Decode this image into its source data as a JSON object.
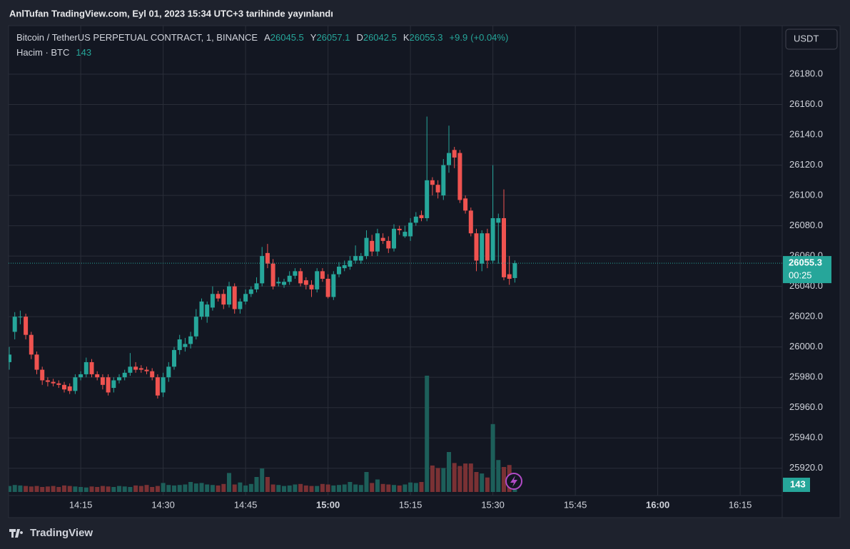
{
  "header": {
    "title": "AnlTufan TradingView.com, Eyl 01, 2023 15:34 UTC+3 tarihinde yayınlandı",
    "currency": "USDT"
  },
  "legend": {
    "symbol": "Bitcoin / TetherUS PERPETUAL CONTRACT, 1, BINANCE",
    "ohlc_labels": [
      "A",
      "Y",
      "D",
      "K"
    ],
    "change": {
      "value": 9.9,
      "label": "+9.9"
    },
    "change_pct": {
      "value": 0.04,
      "label": "(+0.04%)"
    },
    "volume_label": "Hacim · BTC",
    "countdown": "00:25"
  },
  "chart_data": {
    "type": "candlestick",
    "x": [
      "14:02",
      "14:03",
      "14:04",
      "14:05",
      "14:06",
      "14:07",
      "14:08",
      "14:09",
      "14:10",
      "14:11",
      "14:12",
      "14:13",
      "14:14",
      "14:15",
      "14:16",
      "14:17",
      "14:18",
      "14:19",
      "14:20",
      "14:21",
      "14:22",
      "14:23",
      "14:24",
      "14:25",
      "14:26",
      "14:27",
      "14:28",
      "14:29",
      "14:30",
      "14:31",
      "14:32",
      "14:33",
      "14:34",
      "14:35",
      "14:36",
      "14:37",
      "14:38",
      "14:39",
      "14:40",
      "14:41",
      "14:42",
      "14:43",
      "14:44",
      "14:45",
      "14:46",
      "14:47",
      "14:48",
      "14:49",
      "14:50",
      "14:51",
      "14:52",
      "14:53",
      "14:54",
      "14:55",
      "14:56",
      "14:57",
      "14:58",
      "14:59",
      "15:00",
      "15:01",
      "15:02",
      "15:03",
      "15:04",
      "15:05",
      "15:06",
      "15:07",
      "15:08",
      "15:09",
      "15:10",
      "15:11",
      "15:12",
      "15:13",
      "15:14",
      "15:15",
      "15:16",
      "15:17",
      "15:18",
      "15:19",
      "15:20",
      "15:21",
      "15:22",
      "15:23",
      "15:24",
      "15:25",
      "15:26",
      "15:27",
      "15:28",
      "15:29",
      "15:30",
      "15:31",
      "15:32",
      "15:33",
      "15:34"
    ],
    "open": [
      25990,
      26010,
      26020,
      26020,
      26008,
      25995,
      25985,
      25978,
      25977,
      25976,
      25975,
      25974,
      25971,
      25980,
      25982,
      25990,
      25982,
      25980,
      25980,
      25973,
      25978,
      25980,
      25983,
      25987,
      25986,
      25985,
      25984,
      25980,
      25970,
      25980,
      25987,
      25998,
      26000,
      26002,
      26007,
      26020,
      26020,
      26026,
      26035,
      26035,
      26028,
      26040,
      26025,
      26030,
      26035,
      26038,
      26042,
      26062,
      26055,
      26042,
      26041,
      26043,
      26047,
      26050,
      26044,
      26041,
      26038,
      26050,
      26045,
      26033,
      26048,
      26052,
      26053,
      26057,
      26057,
      26060,
      26070,
      26063,
      26072,
      26070,
      26065,
      26078,
      26073,
      26073,
      26082,
      26087,
      26085,
      26110,
      26107,
      26100,
      26120,
      26130,
      26128,
      26098,
      26090,
      26075,
      26055,
      26075,
      26057,
      26082,
      26085,
      26048,
      26045.5
    ],
    "high": [
      26000,
      26023,
      26024,
      26022,
      26010,
      25997,
      25987,
      25980,
      25979,
      25978,
      25977,
      25976,
      25982,
      25984,
      25993,
      25992,
      25984,
      25982,
      25982,
      25980,
      25982,
      25985,
      25996,
      25990,
      25988,
      25987,
      25986,
      25982,
      25983,
      25990,
      26000,
      26008,
      26006,
      26010,
      26025,
      26032,
      26030,
      26040,
      26037,
      26038,
      26043,
      26042,
      26032,
      26038,
      26040,
      26046,
      26066,
      26068,
      26058,
      26046,
      26045,
      26050,
      26052,
      26052,
      26046,
      26044,
      26052,
      26052,
      26048,
      26050,
      26056,
      26057,
      26060,
      26067,
      26062,
      26077,
      26074,
      26078,
      26075,
      26073,
      26081,
      26080,
      26080,
      26085,
      26089,
      26090,
      26152,
      26112,
      26110,
      26124,
      26146,
      26132,
      26130,
      26100,
      26092,
      26078,
      26077,
      26078,
      26120,
      26088,
      26104,
      26060,
      26057.1
    ],
    "low": [
      25985,
      26005,
      26015,
      26005,
      25992,
      25982,
      25975,
      25974,
      25974,
      25973,
      25970,
      25969,
      25969,
      25978,
      25980,
      25980,
      25978,
      25972,
      25968,
      25970,
      25976,
      25978,
      25981,
      25983,
      25983,
      25982,
      25978,
      25966,
      25967,
      25977,
      25985,
      25995,
      25997,
      25999,
      26005,
      26018,
      26016,
      26024,
      26030,
      26025,
      26026,
      26022,
      26022,
      26028,
      26033,
      26036,
      26040,
      26052,
      26038,
      26040,
      26039,
      26041,
      26045,
      26040,
      26038,
      26033,
      26036,
      26043,
      26032,
      26031,
      26046,
      26050,
      26051,
      26055,
      26055,
      26058,
      26060,
      26060,
      26068,
      26062,
      26063,
      26074,
      26072,
      26070,
      26080,
      26083,
      26083,
      26100,
      26098,
      26097,
      26115,
      26118,
      26095,
      26088,
      26073,
      26050,
      26050,
      26052,
      26055,
      26055,
      26044,
      26041,
      26042.5
    ],
    "close": [
      25995,
      26020,
      26020,
      26008,
      25995,
      25985,
      25978,
      25977,
      25976,
      25975,
      25972,
      25971,
      25980,
      25982,
      25990,
      25982,
      25980,
      25975,
      25970,
      25978,
      25980,
      25983,
      25987,
      25985,
      25985,
      25984,
      25980,
      25968,
      25980,
      25987,
      25998,
      26005,
      26002,
      26007,
      26020,
      26030,
      26028,
      26035,
      26032,
      26028,
      26040,
      26025,
      26030,
      26035,
      26038,
      26042,
      26060,
      26055,
      26040,
      26043,
      26043,
      26047,
      26050,
      26042,
      26041,
      26038,
      26050,
      26045,
      26033,
      26048,
      26053,
      26054,
      26057,
      26060,
      26060,
      26072,
      26063,
      26075,
      26070,
      26065,
      26078,
      26077,
      26076,
      26082,
      26086,
      26085,
      26110,
      26107,
      26102,
      26120,
      26128,
      26125,
      26097,
      26090,
      26075,
      26057,
      26075,
      26057,
      26085,
      26085,
      26046,
      26045,
      26055.3
    ],
    "volume": [
      120,
      140,
      130,
      120,
      110,
      120,
      100,
      110,
      120,
      100,
      130,
      120,
      110,
      100,
      90,
      110,
      100,
      120,
      110,
      100,
      120,
      110,
      100,
      130,
      120,
      140,
      100,
      120,
      180,
      140,
      130,
      140,
      150,
      200,
      170,
      180,
      150,
      140,
      130,
      160,
      380,
      150,
      190,
      130,
      160,
      300,
      470,
      300,
      150,
      140,
      120,
      130,
      150,
      160,
      130,
      120,
      120,
      160,
      150,
      130,
      140,
      150,
      200,
      150,
      140,
      400,
      180,
      250,
      160,
      150,
      140,
      130,
      150,
      190,
      180,
      200,
      2330,
      530,
      480,
      480,
      800,
      580,
      520,
      570,
      570,
      400,
      370,
      290,
      1360,
      640,
      500,
      540,
      143
    ],
    "ylim": [
      25902,
      26212
    ],
    "yticks": [
      {
        "value": 25920,
        "label": "25920.0"
      },
      {
        "value": 25940,
        "label": "25940.0"
      },
      {
        "value": 25960,
        "label": "25960.0"
      },
      {
        "value": 25980,
        "label": "25980.0"
      },
      {
        "value": 26000,
        "label": "26000.0"
      },
      {
        "value": 26020,
        "label": "26020.0"
      },
      {
        "value": 26040,
        "label": "26040.0"
      },
      {
        "value": 26060,
        "label": "26060.0"
      },
      {
        "value": 26080,
        "label": "26080.0"
      },
      {
        "value": 26100,
        "label": "26100.0"
      },
      {
        "value": 26120,
        "label": "26120.0"
      },
      {
        "value": 26140,
        "label": "26140.0"
      },
      {
        "value": 26160,
        "label": "26160.0"
      },
      {
        "value": 26180,
        "label": "26180.0"
      }
    ],
    "xticks": [
      "14:15",
      "14:30",
      "14:45",
      "15:00",
      "15:15",
      "15:30",
      "15:45",
      "16:00",
      "16:15"
    ],
    "volume_ylim": [
      0,
      2500
    ],
    "grid": true,
    "up_color": "#26a69a",
    "down_color": "#ef5350",
    "volume_up_color": "#1d5f5a",
    "volume_down_color": "#7a3134"
  },
  "footer": {
    "brand": "TradingView"
  }
}
